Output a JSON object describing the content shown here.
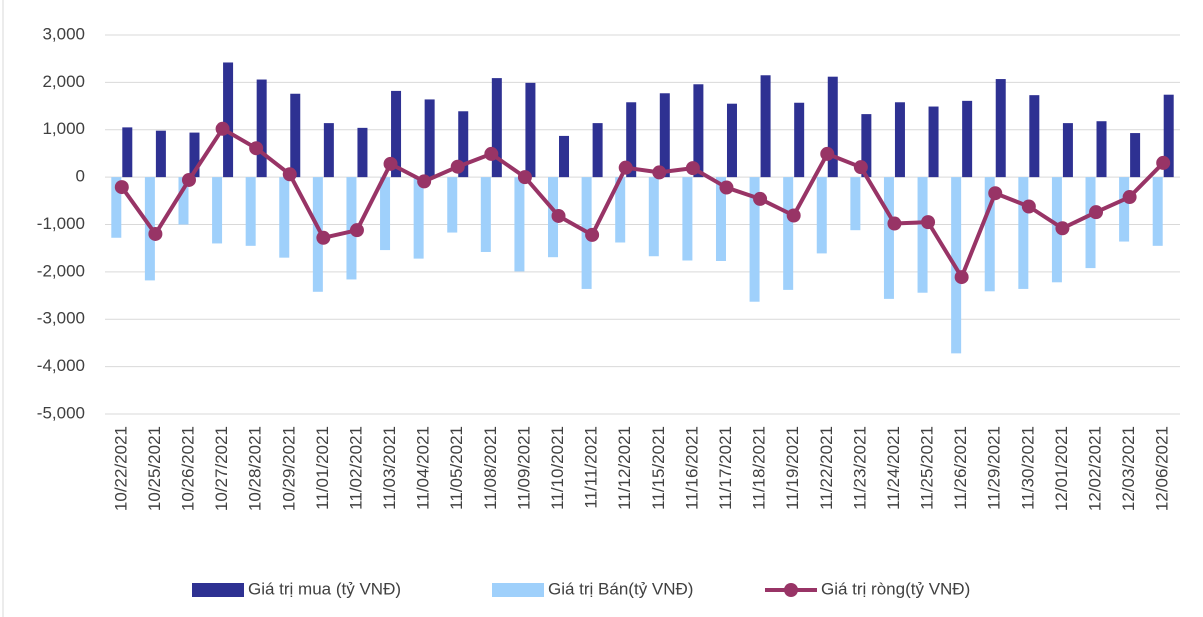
{
  "chart_data": {
    "type": "bar-line",
    "categories": [
      "10/22/2021",
      "10/25/2021",
      "10/26/2021",
      "10/27/2021",
      "10/28/2021",
      "10/29/2021",
      "11/01/2021",
      "11/02/2021",
      "11/03/2021",
      "11/04/2021",
      "11/05/2021",
      "11/08/2021",
      "11/09/2021",
      "11/10/2021",
      "11/11/2021",
      "11/12/2021",
      "11/15/2021",
      "11/16/2021",
      "11/17/2021",
      "11/18/2021",
      "11/19/2021",
      "11/22/2021",
      "11/23/2021",
      "11/24/2021",
      "11/25/2021",
      "11/26/2021",
      "11/29/2021",
      "11/30/2021",
      "12/01/2021",
      "12/02/2021",
      "12/03/2021",
      "12/06/2021"
    ],
    "series": [
      {
        "name": "Giá trị mua (tỷ VNĐ)",
        "type": "bar",
        "color": "#2e3192",
        "values": [
          1050,
          980,
          940,
          2420,
          2060,
          1760,
          1140,
          1040,
          1820,
          1640,
          1390,
          2090,
          1990,
          870,
          1140,
          1580,
          1770,
          1960,
          1550,
          2150,
          1570,
          2120,
          1330,
          1580,
          1490,
          1610,
          2070,
          1730,
          1140,
          1180,
          930,
          1740
        ]
      },
      {
        "name": "Giá trị Bán(tỷ VNĐ)",
        "type": "bar",
        "color": "#9fd0fb",
        "values": [
          -1280,
          -2180,
          -1000,
          -1400,
          -1450,
          -1700,
          -2420,
          -2160,
          -1540,
          -1720,
          -1170,
          -1580,
          -1990,
          -1690,
          -2360,
          -1380,
          -1670,
          -1760,
          -1770,
          -2630,
          -2380,
          -1610,
          -1120,
          -2570,
          -2440,
          -3720,
          -2410,
          -2360,
          -2220,
          -1920,
          -1360,
          -1450
        ]
      },
      {
        "name": "Giá trị ròng(tỷ VNĐ)",
        "type": "line",
        "color": "#983466",
        "values": [
          -210,
          -1200,
          -60,
          1020,
          610,
          60,
          -1280,
          -1120,
          280,
          -90,
          220,
          490,
          0,
          -820,
          -1220,
          200,
          100,
          190,
          -220,
          -460,
          -810,
          490,
          210,
          -980,
          -950,
          -2110,
          -340,
          -620,
          -1080,
          -740,
          -420,
          300
        ]
      }
    ],
    "ylim": [
      -5000,
      3000
    ],
    "yticks": [
      {
        "value": -5000,
        "label": "-5,000"
      },
      {
        "value": -4000,
        "label": "-4,000"
      },
      {
        "value": -3000,
        "label": "-3,000"
      },
      {
        "value": -2000,
        "label": "-2,000"
      },
      {
        "value": -1000,
        "label": "-1,000"
      },
      0,
      {
        "value": 1000,
        "label": "1,000"
      },
      {
        "value": 2000,
        "label": "2,000"
      },
      {
        "value": 3000,
        "label": "3,000"
      }
    ],
    "grid": true,
    "legend": "bottom"
  }
}
